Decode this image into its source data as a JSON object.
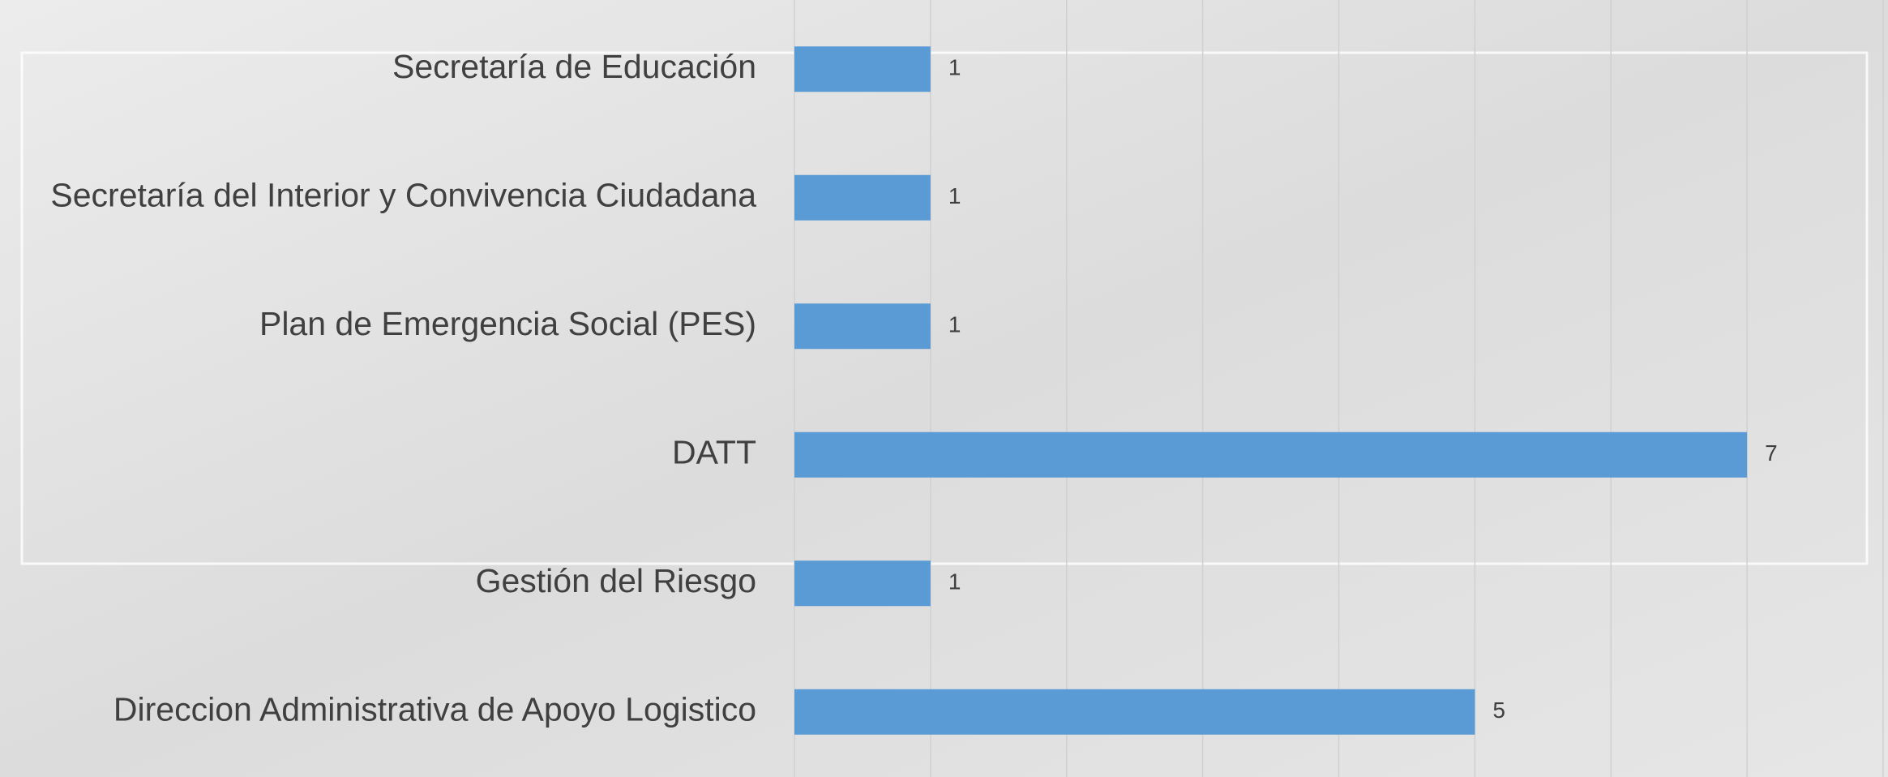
{
  "chart_data": {
    "type": "bar",
    "orientation": "horizontal",
    "categories": [
      "Secretaría de Educación",
      "Secretaría del Interior y Convivencia Ciudadana",
      "Plan de Emergencia Social (PES)",
      "DATT",
      "Gestión del Riesgo",
      "Direccion Administrativa de Apoyo Logistico"
    ],
    "values": [
      1,
      1,
      1,
      7,
      1,
      5
    ],
    "color": "#5b9bd5",
    "xlim": [
      0,
      8
    ],
    "xticks": [
      0,
      1,
      2,
      3,
      4,
      5,
      6,
      7,
      8
    ],
    "grid": true
  }
}
